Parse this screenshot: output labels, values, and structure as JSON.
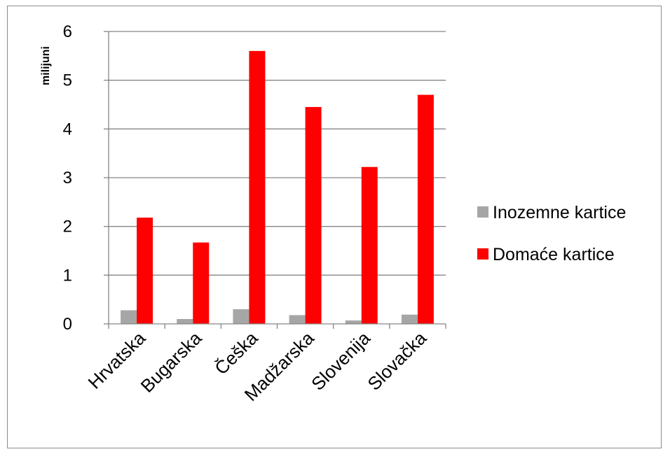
{
  "chart_data": {
    "type": "bar",
    "ylabel": "milijuni",
    "xlabel": "",
    "ylim": [
      0,
      6
    ],
    "yticks": [
      "0",
      "1",
      "2",
      "3",
      "4",
      "5",
      "6"
    ],
    "grid": true,
    "legend_position": "right",
    "categories": [
      "Hrvatska",
      "Bugarska",
      "Češka",
      "Madžarska",
      "Slovenija",
      "Slovačka"
    ],
    "series": [
      {
        "name": "Inozemne kartice",
        "color": "#a6a6a6",
        "values": [
          0.28,
          0.1,
          0.3,
          0.18,
          0.07,
          0.19
        ]
      },
      {
        "name": "Domaće kartice",
        "color": "#ff0000",
        "values": [
          2.18,
          1.67,
          5.6,
          4.45,
          3.22,
          4.7
        ]
      }
    ]
  }
}
